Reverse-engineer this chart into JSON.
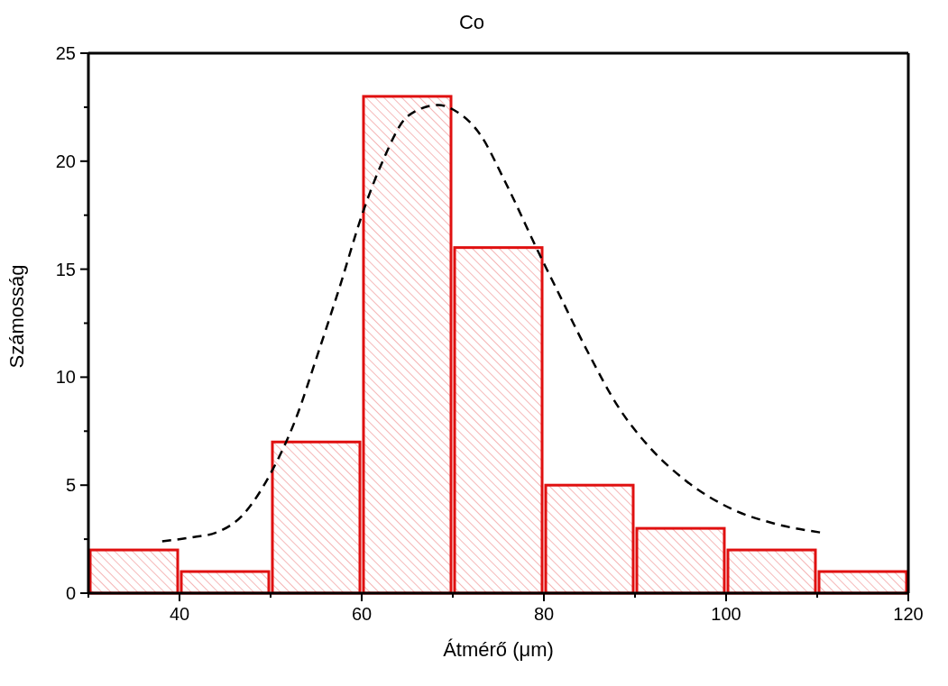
{
  "chart_data": {
    "type": "histogram",
    "title": "Co",
    "xlabel": "Átmérő (μm)",
    "ylabel": "Számosság",
    "bins": [
      30,
      40,
      50,
      60,
      70,
      80,
      90,
      100,
      110,
      120
    ],
    "values": [
      2,
      1,
      7,
      23,
      16,
      5,
      3,
      2,
      1
    ],
    "color": "#e01010",
    "series": [
      {
        "type": "line",
        "color": "#000000",
        "line_style": "dashed",
        "marker": "none",
        "x": [
          38.1,
          41.6,
          44.0,
          46.9,
          50.2,
          52.7,
          55.2,
          57.6,
          60.1,
          62.2,
          65.1,
          68.4,
          70.4,
          72.9,
          75.8,
          79.5,
          81.6,
          84.9,
          88.2,
          91.5,
          95.6,
          100.6,
          105.5,
          110.5
        ],
        "values": [
          2.4,
          2.6,
          2.8,
          3.6,
          5.7,
          8.0,
          11.1,
          14.2,
          17.6,
          19.9,
          22.1,
          22.6,
          22.3,
          21.3,
          19.0,
          15.7,
          13.9,
          11.1,
          8.6,
          6.8,
          5.2,
          3.9,
          3.2,
          2.8
        ]
      }
    ],
    "xlim": [
      30,
      120
    ],
    "xticks": [
      {
        "value": 30,
        "label": null
      },
      40,
      {
        "value": 50,
        "label": null
      },
      60,
      {
        "value": 70,
        "label": null
      },
      80,
      {
        "value": 90,
        "label": null
      },
      100,
      {
        "value": 110,
        "label": null
      },
      120
    ],
    "ylim": [
      0,
      25
    ],
    "yticks": [
      0,
      {
        "value": 2.5,
        "label": null
      },
      5,
      {
        "value": 7.5,
        "label": null
      },
      10,
      {
        "value": 12.5,
        "label": null
      },
      15,
      {
        "value": 17.5,
        "label": null
      },
      20,
      {
        "value": 22.5,
        "label": null
      },
      25
    ],
    "grid": false
  }
}
